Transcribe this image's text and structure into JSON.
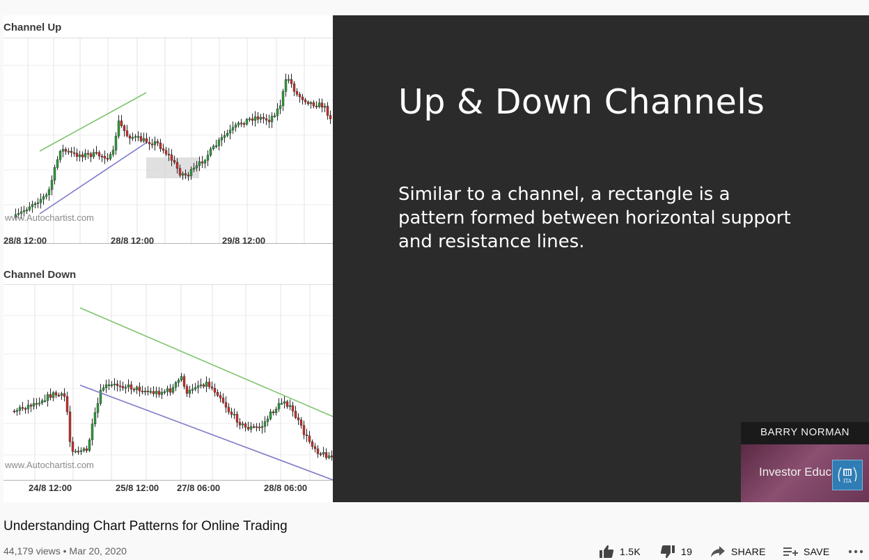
{
  "slide": {
    "title": "Up & Down Channels",
    "body": "Similar to a channel, a rectangle is a pattern formed between horizontal support and resistance lines."
  },
  "charts": {
    "top": {
      "title": "Channel Up",
      "watermark": "www.Autochartist.com",
      "x_labels": [
        "28/8 12:00",
        "28/8 12:00",
        "29/8 12:00"
      ]
    },
    "bottom": {
      "title": "Channel Down",
      "watermark": "www.Autochartist.com",
      "x_labels": [
        "24/8 12:00",
        "25/8 12:00",
        "27/8 06:00",
        "28/8 06:00"
      ]
    }
  },
  "presenter": {
    "name": "BARRY NORMAN",
    "banner": "Investor Educat",
    "logo_text": "ITA"
  },
  "video": {
    "title": "Understanding Chart Patterns for Online Trading",
    "views": "44,179 views",
    "separator": "•",
    "date": "Mar 20, 2020"
  },
  "actions": {
    "likes": "1.5K",
    "dislikes": "19",
    "share": "SHARE",
    "save": "SAVE"
  },
  "colors": {
    "bull": "#2e9b3b",
    "bear": "#c7302b",
    "resistance": "#7ec46e",
    "support": "#7c78c8"
  }
}
